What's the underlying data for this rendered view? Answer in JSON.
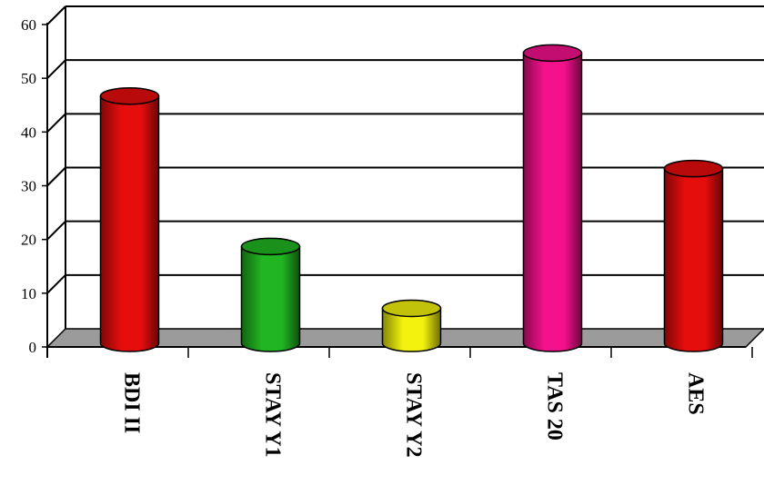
{
  "chart_data": {
    "type": "bar",
    "style": "3d-cylinder",
    "categories": [
      "BDI II",
      "STAY Y1",
      "STAY Y2",
      "TAS 20",
      "AES"
    ],
    "values": [
      45,
      17,
      5.5,
      53,
      31.5
    ],
    "colors": [
      "#e60d0d",
      "#21b521",
      "#f2f20e",
      "#f5108c",
      "#e60d0d"
    ],
    "y_ticks": [
      "0",
      "10",
      "20",
      "30",
      "40",
      "50",
      "60"
    ],
    "ylim": [
      0,
      60
    ],
    "grid": true,
    "floor_color": "#9b9b9b",
    "title": "",
    "xlabel": "",
    "ylabel": ""
  }
}
